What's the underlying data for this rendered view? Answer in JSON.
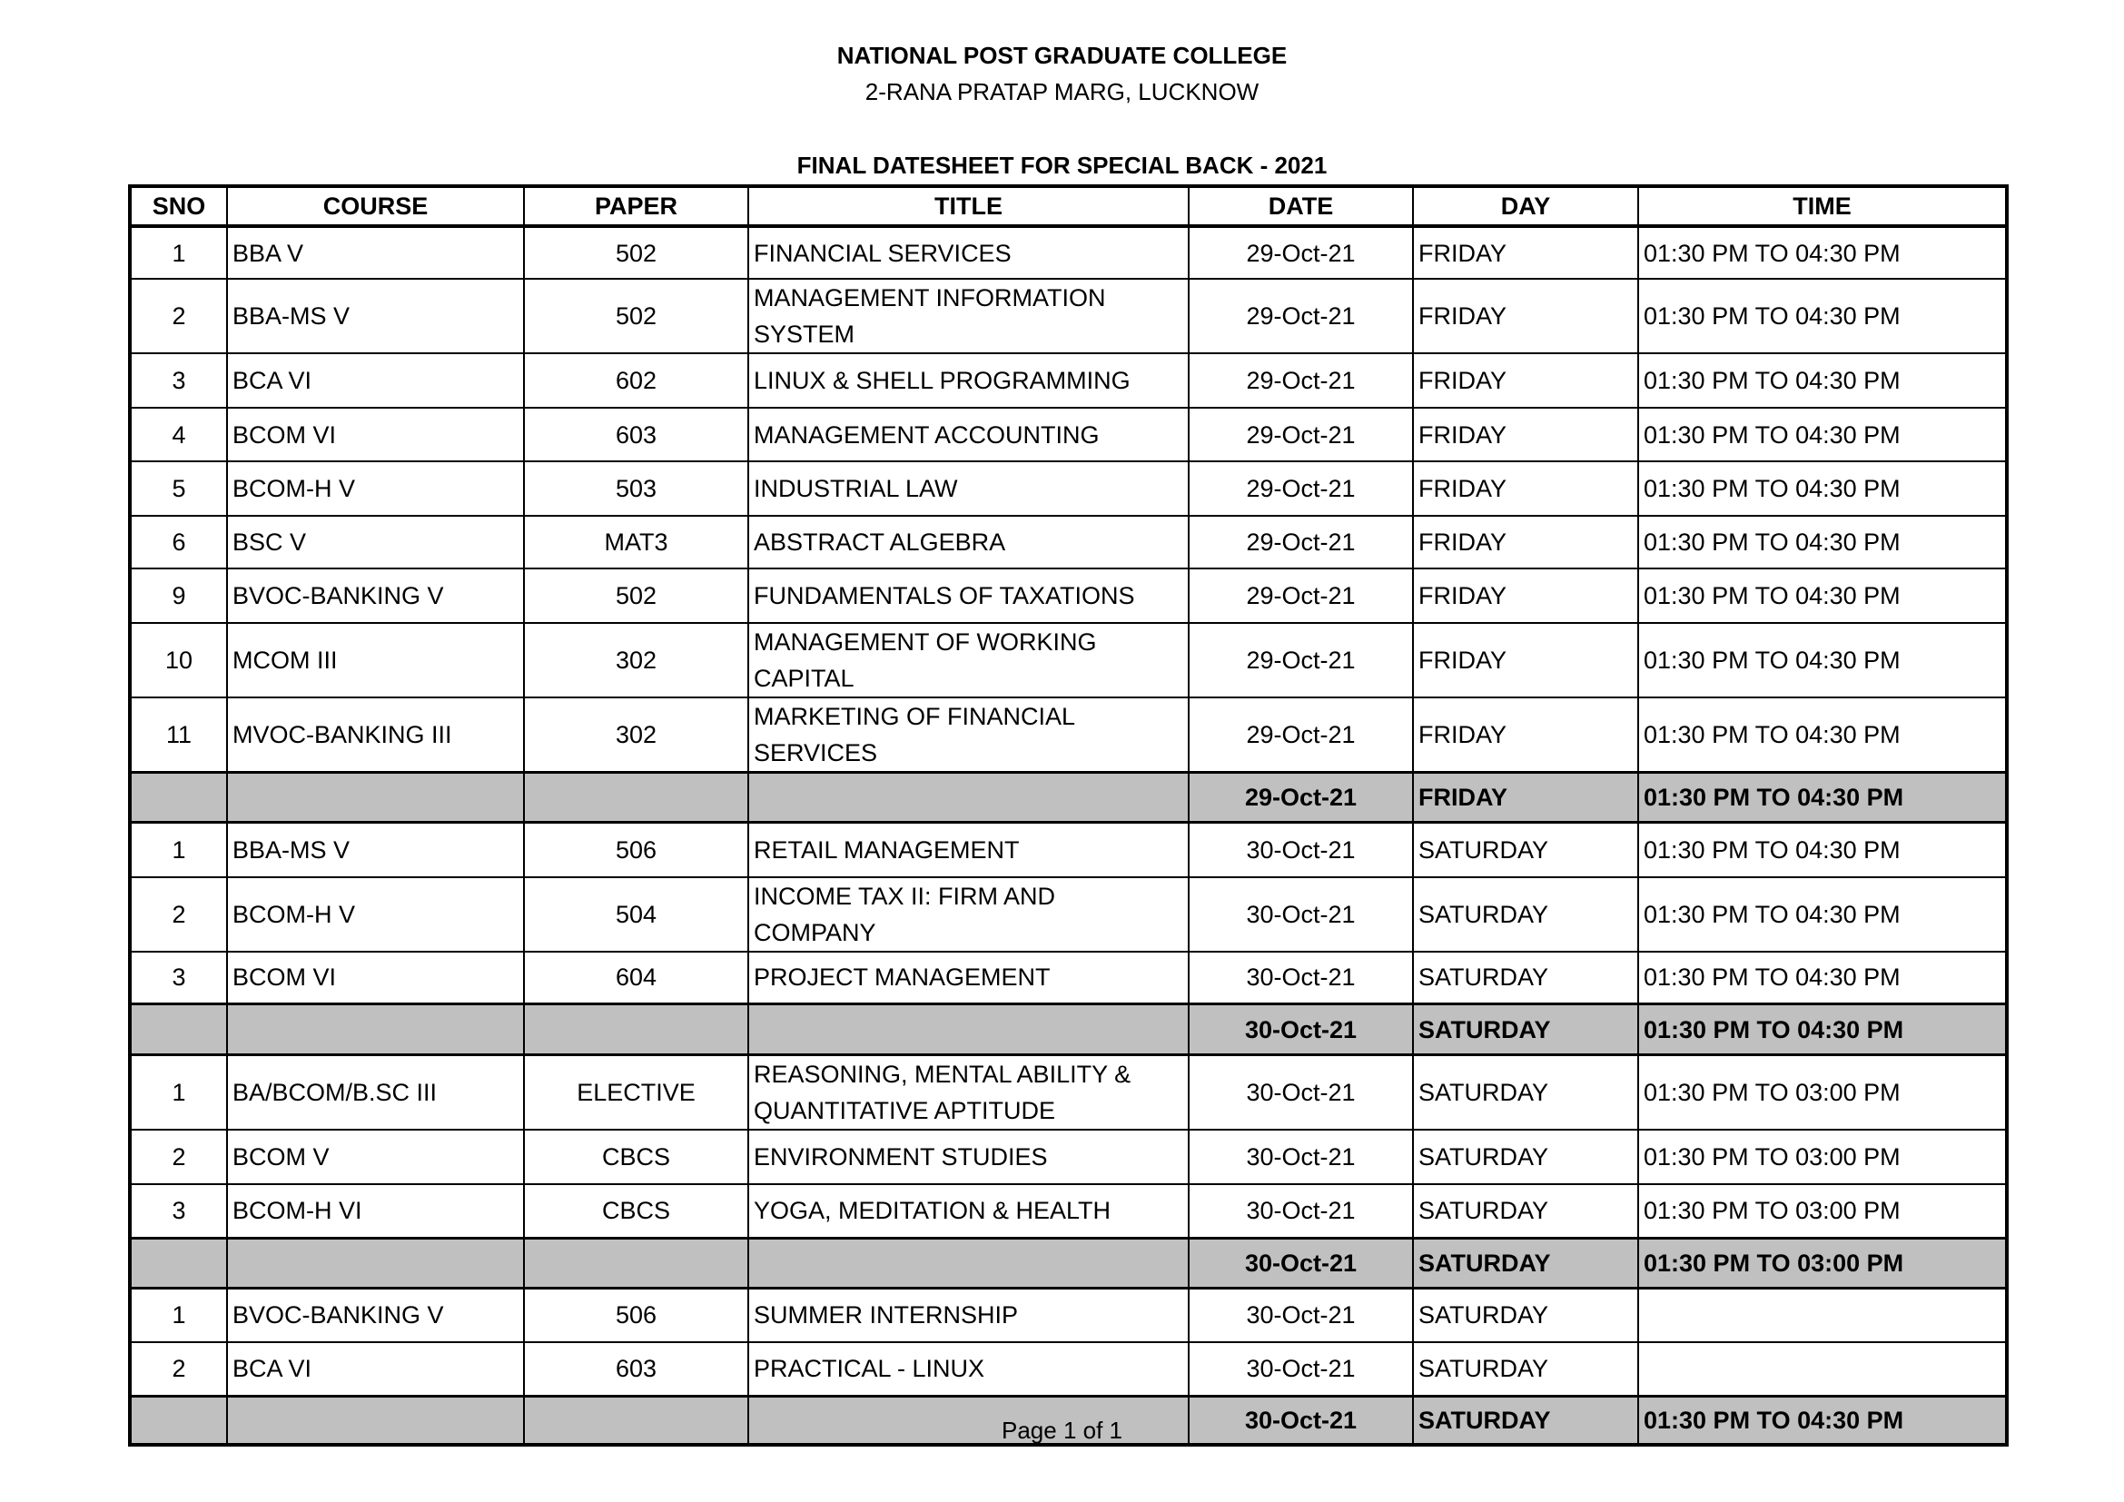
{
  "header": {
    "college": "NATIONAL POST GRADUATE COLLEGE",
    "address": "2-RANA PRATAP MARG, LUCKNOW",
    "title": "FINAL DATESHEET FOR SPECIAL BACK - 2021"
  },
  "columns": [
    "SNO",
    "COURSE",
    "PAPER",
    "TITLE",
    "DATE",
    "DAY",
    "TIME"
  ],
  "rows": [
    {
      "sno": "1",
      "course": "BBA V",
      "paper": "502",
      "title": "FINANCIAL SERVICES",
      "date": "29-Oct-21",
      "day": "FRIDAY",
      "time": "01:30 PM TO 04:30 PM"
    },
    {
      "sno": "2",
      "course": "BBA-MS V",
      "paper": "502",
      "title": "MANAGEMENT INFORMATION SYSTEM",
      "date": "29-Oct-21",
      "day": "FRIDAY",
      "time": "01:30 PM TO 04:30 PM"
    },
    {
      "sno": "3",
      "course": "BCA VI",
      "paper": "602",
      "title": "LINUX & SHELL PROGRAMMING",
      "date": "29-Oct-21",
      "day": "FRIDAY",
      "time": "01:30 PM TO 04:30 PM"
    },
    {
      "sno": "4",
      "course": "BCOM VI",
      "paper": "603",
      "title": "MANAGEMENT ACCOUNTING",
      "date": "29-Oct-21",
      "day": "FRIDAY",
      "time": "01:30 PM TO 04:30 PM"
    },
    {
      "sno": "5",
      "course": "BCOM-H V",
      "paper": "503",
      "title": "INDUSTRIAL LAW",
      "date": "29-Oct-21",
      "day": "FRIDAY",
      "time": "01:30 PM TO 04:30 PM"
    },
    {
      "sno": "6",
      "course": "BSC V",
      "paper": "MAT3",
      "title": "ABSTRACT ALGEBRA",
      "date": "29-Oct-21",
      "day": "FRIDAY",
      "time": "01:30 PM TO 04:30 PM"
    },
    {
      "sno": "9",
      "course": "BVOC-BANKING V",
      "paper": "502",
      "title": "FUNDAMENTALS OF TAXATIONS",
      "date": "29-Oct-21",
      "day": "FRIDAY",
      "time": "01:30 PM TO 04:30 PM"
    },
    {
      "sno": "10",
      "course": "MCOM III",
      "paper": "302",
      "title": "MANAGEMENT OF WORKING CAPITAL",
      "date": "29-Oct-21",
      "day": "FRIDAY",
      "time": "01:30 PM TO 04:30 PM"
    },
    {
      "sno": "11",
      "course": "MVOC-BANKING III",
      "paper": "302",
      "title": "MARKETING OF FINANCIAL SERVICES",
      "date": "29-Oct-21",
      "day": "FRIDAY",
      "time": "01:30 PM TO 04:30 PM"
    },
    {
      "summary": true,
      "sno": "",
      "course": "",
      "paper": "",
      "title": "",
      "date": "29-Oct-21",
      "day": "FRIDAY",
      "time": "01:30 PM TO 04:30 PM"
    },
    {
      "sno": "1",
      "course": "BBA-MS V",
      "paper": "506",
      "title": "RETAIL MANAGEMENT",
      "date": "30-Oct-21",
      "day": "SATURDAY",
      "time": "01:30 PM TO 04:30 PM"
    },
    {
      "sno": "2",
      "course": "BCOM-H V",
      "paper": "504",
      "title": "INCOME TAX II: FIRM AND COMPANY",
      "date": "30-Oct-21",
      "day": "SATURDAY",
      "time": "01:30 PM TO 04:30 PM"
    },
    {
      "sno": "3",
      "course": "BCOM VI",
      "paper": "604",
      "title": "PROJECT MANAGEMENT",
      "date": "30-Oct-21",
      "day": "SATURDAY",
      "time": "01:30 PM TO 04:30 PM"
    },
    {
      "summary": true,
      "sno": "",
      "course": "",
      "paper": "",
      "title": "",
      "date": "30-Oct-21",
      "day": "SATURDAY",
      "time": "01:30 PM TO 04:30 PM"
    },
    {
      "sno": "1",
      "course": "BA/BCOM/B.SC III",
      "paper": "ELECTIVE",
      "title": "REASONING, MENTAL ABILITY & QUANTITATIVE APTITUDE",
      "date": "30-Oct-21",
      "day": "SATURDAY",
      "time": "01:30 PM TO 03:00 PM"
    },
    {
      "sno": "2",
      "course": "BCOM V",
      "paper": "CBCS",
      "title": "ENVIRONMENT STUDIES",
      "date": "30-Oct-21",
      "day": "SATURDAY",
      "time": "01:30 PM TO 03:00 PM"
    },
    {
      "sno": "3",
      "course": "BCOM-H VI",
      "paper": "CBCS",
      "title": "YOGA, MEDITATION & HEALTH",
      "date": "30-Oct-21",
      "day": "SATURDAY",
      "time": "01:30 PM TO 03:00 PM"
    },
    {
      "summary": true,
      "sno": "",
      "course": "",
      "paper": "",
      "title": "",
      "date": "30-Oct-21",
      "day": "SATURDAY",
      "time": "01:30 PM TO 03:00 PM"
    },
    {
      "sno": "1",
      "course": "BVOC-BANKING V",
      "paper": "506",
      "title": "SUMMER INTERNSHIP",
      "date": "30-Oct-21",
      "day": "SATURDAY",
      "time": ""
    },
    {
      "sno": "2",
      "course": "BCA VI",
      "paper": "603",
      "title": "PRACTICAL - LINUX",
      "date": "30-Oct-21",
      "day": "SATURDAY",
      "time": ""
    },
    {
      "summary": true,
      "sno": "",
      "course": "",
      "paper": "",
      "title": "",
      "date": "30-Oct-21",
      "day": "SATURDAY",
      "time": "01:30 PM TO 04:30 PM"
    }
  ],
  "footer": "Page 1 of 1"
}
